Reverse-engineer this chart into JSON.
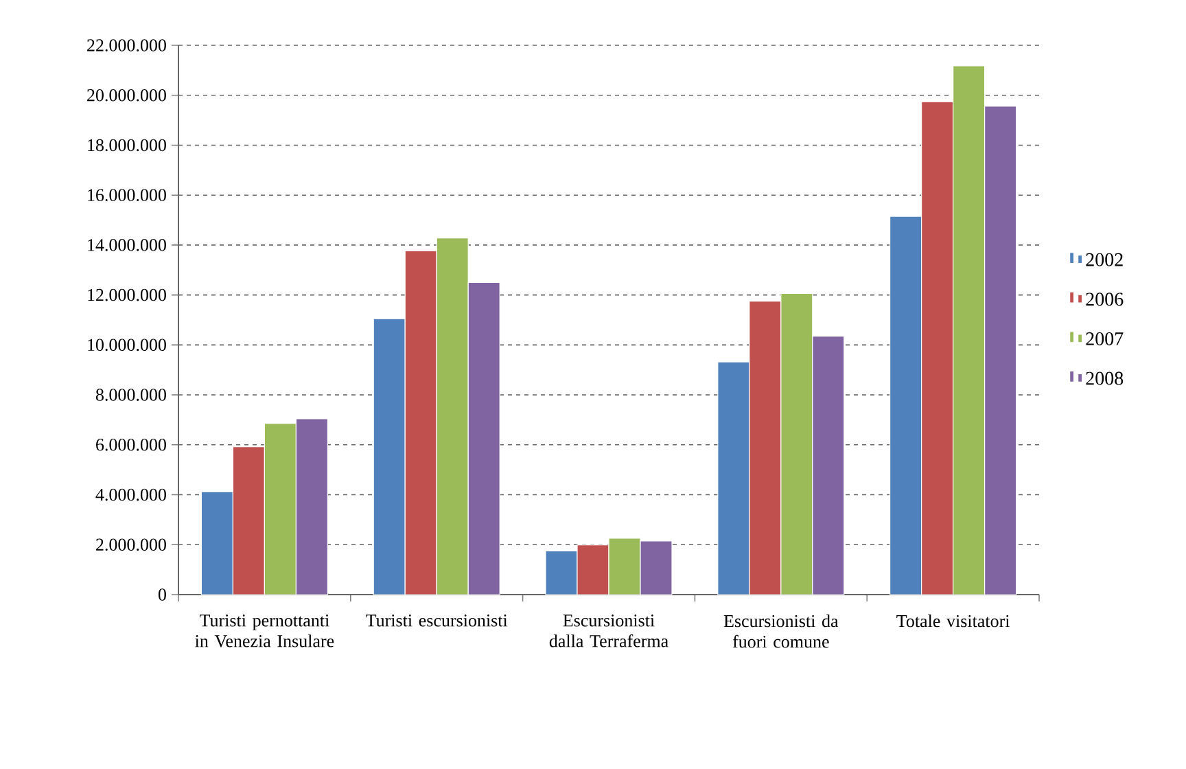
{
  "chart_data": {
    "type": "bar",
    "categories": [
      "Turisti pernottanti in Venezia Insulare",
      "Turisti escursionisti",
      "Escursionisti dalla Terraferma",
      "Escursionisti da fuori comune",
      "Totale visitatori"
    ],
    "series": [
      {
        "name": "2002",
        "color": "#4f81bd",
        "values": [
          4120000,
          11050000,
          1750000,
          9320000,
          15150000
        ]
      },
      {
        "name": "2006",
        "color": "#c0504d",
        "values": [
          5920000,
          13770000,
          1990000,
          11750000,
          19740000
        ]
      },
      {
        "name": "2007",
        "color": "#9bbb59",
        "values": [
          6860000,
          14280000,
          2260000,
          12060000,
          21180000
        ]
      },
      {
        "name": "2008",
        "color": "#8064a2",
        "values": [
          7040000,
          12500000,
          2150000,
          10350000,
          19560000
        ]
      }
    ],
    "ylim": [
      0,
      22000000
    ],
    "yticks": [
      0,
      {
        "value": 2000000,
        "label": "2.000.000"
      },
      {
        "value": 4000000,
        "label": "4.000.000"
      },
      {
        "value": 6000000,
        "label": "6.000.000"
      },
      {
        "value": 8000000,
        "label": "8.000.000"
      },
      {
        "value": 10000000,
        "label": "10.000.000"
      },
      {
        "value": 12000000,
        "label": "12.000.000"
      },
      {
        "value": 14000000,
        "label": "14.000.000"
      },
      {
        "value": 16000000,
        "label": "16.000.000"
      },
      {
        "value": 18000000,
        "label": "18.000.000"
      },
      {
        "value": 20000000,
        "label": "20.000.000"
      },
      {
        "value": 22000000,
        "label": "22.000.000"
      }
    ],
    "grid": "y",
    "legend": "right"
  }
}
